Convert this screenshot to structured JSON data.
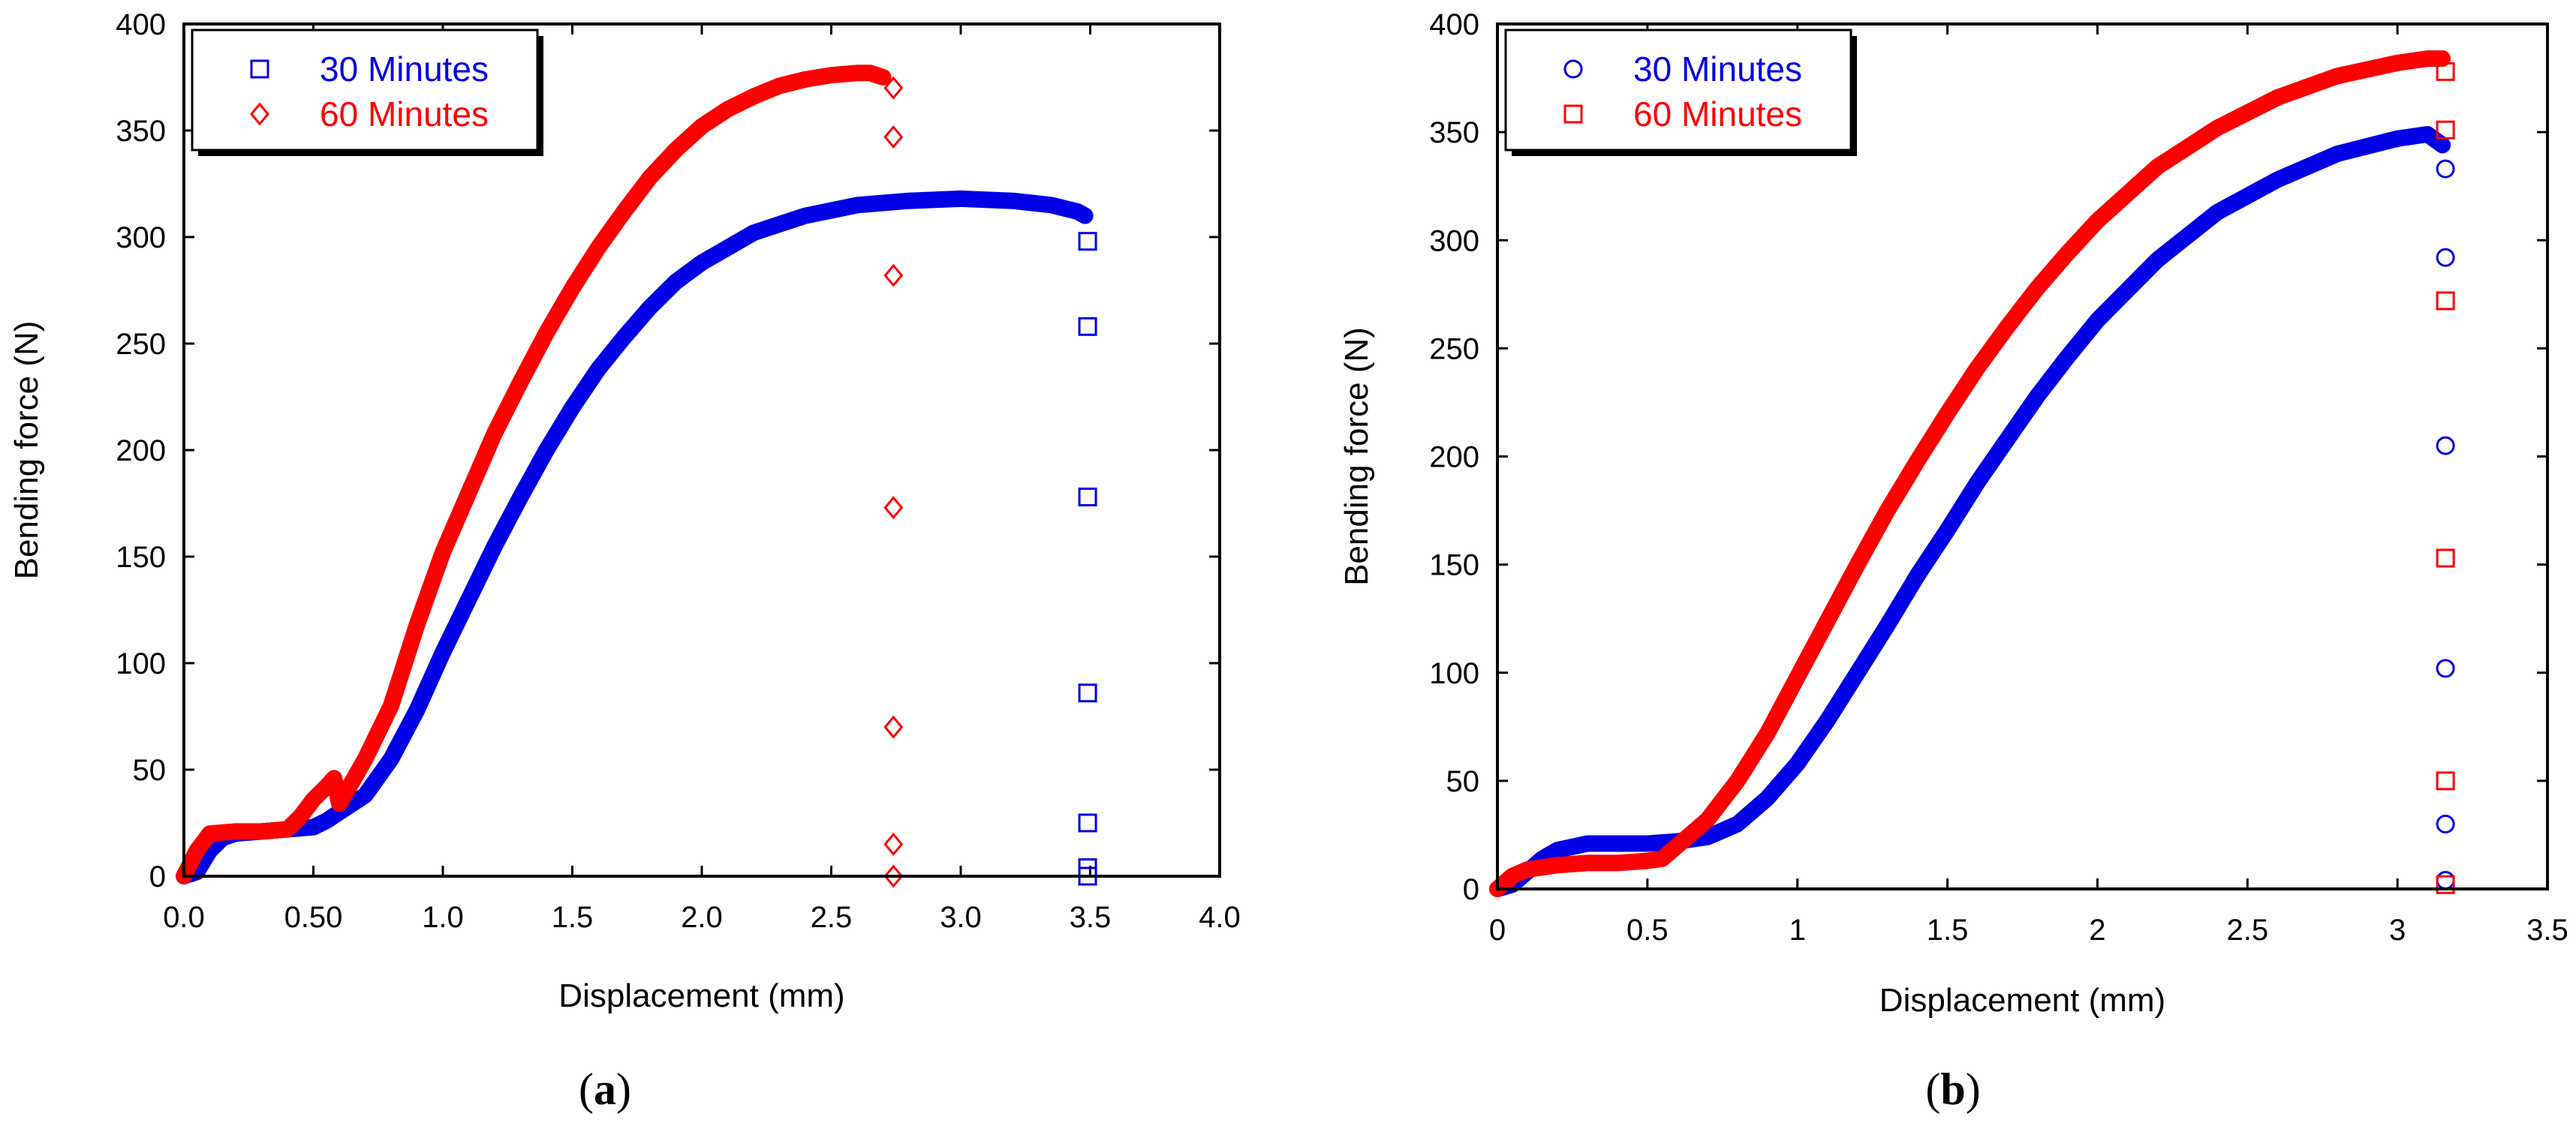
{
  "figure": {
    "panels": [
      {
        "caption_open": "(",
        "caption_letter": "a",
        "caption_close": ")"
      },
      {
        "caption_open": "(",
        "caption_letter": "b",
        "caption_close": ")"
      }
    ]
  },
  "colors": {
    "series_blue": "#0000e6",
    "series_red": "#ff0000",
    "axis": "#000000"
  },
  "chart_data": [
    {
      "type": "scatter",
      "xlabel": "Displacement (mm)",
      "ylabel": "Bending force (N)",
      "xlim": [
        0,
        4
      ],
      "ylim": [
        0,
        400
      ],
      "x_ticks": [
        "0.0",
        "0.50",
        "1.0",
        "1.5",
        "2.0",
        "2.5",
        "3.0",
        "3.5",
        "4.0"
      ],
      "x_tick_values": [
        0,
        0.5,
        1.0,
        1.5,
        2.0,
        2.5,
        3.0,
        3.5,
        4.0
      ],
      "y_ticks": [
        "0",
        "50",
        "100",
        "150",
        "200",
        "250",
        "300",
        "350",
        "400"
      ],
      "y_tick_values": [
        0,
        50,
        100,
        150,
        200,
        250,
        300,
        350,
        400
      ],
      "legend_position": "top-left",
      "series": [
        {
          "name": "30 Minutes",
          "color": "#0000e6",
          "marker": "square",
          "curve": [
            [
              0.0,
              0
            ],
            [
              0.05,
              2
            ],
            [
              0.1,
              12
            ],
            [
              0.15,
              18
            ],
            [
              0.2,
              20
            ],
            [
              0.3,
              21
            ],
            [
              0.4,
              22
            ],
            [
              0.5,
              23
            ],
            [
              0.55,
              26
            ],
            [
              0.6,
              30
            ],
            [
              0.7,
              38
            ],
            [
              0.8,
              55
            ],
            [
              0.9,
              78
            ],
            [
              1.0,
              105
            ],
            [
              1.1,
              130
            ],
            [
              1.2,
              155
            ],
            [
              1.3,
              178
            ],
            [
              1.4,
              200
            ],
            [
              1.5,
              220
            ],
            [
              1.6,
              238
            ],
            [
              1.7,
              253
            ],
            [
              1.8,
              267
            ],
            [
              1.9,
              279
            ],
            [
              2.0,
              288
            ],
            [
              2.2,
              302
            ],
            [
              2.4,
              310
            ],
            [
              2.6,
              315
            ],
            [
              2.8,
              317
            ],
            [
              3.0,
              318
            ],
            [
              3.2,
              317
            ],
            [
              3.35,
              315
            ],
            [
              3.45,
              312
            ],
            [
              3.48,
              310
            ]
          ],
          "drop_points": [
            [
              3.49,
              298
            ],
            [
              3.49,
              258
            ],
            [
              3.49,
              178
            ],
            [
              3.49,
              86
            ],
            [
              3.49,
              25
            ],
            [
              3.49,
              4
            ],
            [
              3.49,
              0
            ]
          ]
        },
        {
          "name": "60 Minutes",
          "color": "#ff0000",
          "marker": "diamond",
          "curve": [
            [
              0.0,
              0
            ],
            [
              0.05,
              12
            ],
            [
              0.1,
              20
            ],
            [
              0.2,
              21
            ],
            [
              0.3,
              21
            ],
            [
              0.4,
              22
            ],
            [
              0.45,
              28
            ],
            [
              0.5,
              36
            ],
            [
              0.55,
              42
            ],
            [
              0.58,
              46
            ],
            [
              0.6,
              34
            ],
            [
              0.62,
              38
            ],
            [
              0.7,
              55
            ],
            [
              0.8,
              80
            ],
            [
              0.9,
              118
            ],
            [
              1.0,
              152
            ],
            [
              1.1,
              180
            ],
            [
              1.2,
              208
            ],
            [
              1.3,
              232
            ],
            [
              1.4,
              255
            ],
            [
              1.5,
              276
            ],
            [
              1.6,
              295
            ],
            [
              1.7,
              312
            ],
            [
              1.8,
              328
            ],
            [
              1.9,
              341
            ],
            [
              2.0,
              352
            ],
            [
              2.1,
              360
            ],
            [
              2.2,
              366
            ],
            [
              2.3,
              371
            ],
            [
              2.4,
              374
            ],
            [
              2.5,
              376
            ],
            [
              2.6,
              377
            ],
            [
              2.65,
              377
            ],
            [
              2.7,
              375
            ]
          ],
          "drop_points": [
            [
              2.74,
              370
            ],
            [
              2.74,
              347
            ],
            [
              2.74,
              282
            ],
            [
              2.74,
              173
            ],
            [
              2.74,
              70
            ],
            [
              2.74,
              15
            ],
            [
              2.74,
              0
            ]
          ]
        }
      ]
    },
    {
      "type": "scatter",
      "xlabel": "Displacement (mm)",
      "ylabel": "Bending force (N)",
      "xlim": [
        0,
        3.5
      ],
      "ylim": [
        0,
        400
      ],
      "x_ticks": [
        "0",
        "0.5",
        "1",
        "1.5",
        "2",
        "2.5",
        "3",
        "3.5"
      ],
      "x_tick_values": [
        0,
        0.5,
        1,
        1.5,
        2,
        2.5,
        3,
        3.5
      ],
      "y_ticks": [
        "0",
        "50",
        "100",
        "150",
        "200",
        "250",
        "300",
        "350",
        "400"
      ],
      "y_tick_values": [
        0,
        50,
        100,
        150,
        200,
        250,
        300,
        350,
        400
      ],
      "legend_position": "top-left",
      "series": [
        {
          "name": "30 Minutes",
          "color": "#0000e6",
          "marker": "circle",
          "curve": [
            [
              0.0,
              0
            ],
            [
              0.05,
              2
            ],
            [
              0.1,
              8
            ],
            [
              0.15,
              14
            ],
            [
              0.2,
              18
            ],
            [
              0.3,
              21
            ],
            [
              0.4,
              21
            ],
            [
              0.5,
              21
            ],
            [
              0.6,
              22
            ],
            [
              0.7,
              24
            ],
            [
              0.8,
              30
            ],
            [
              0.9,
              42
            ],
            [
              1.0,
              58
            ],
            [
              1.1,
              78
            ],
            [
              1.2,
              100
            ],
            [
              1.3,
              122
            ],
            [
              1.4,
              145
            ],
            [
              1.5,
              166
            ],
            [
              1.6,
              188
            ],
            [
              1.7,
              208
            ],
            [
              1.8,
              228
            ],
            [
              1.9,
              246
            ],
            [
              2.0,
              263
            ],
            [
              2.2,
              291
            ],
            [
              2.4,
              313
            ],
            [
              2.6,
              328
            ],
            [
              2.8,
              340
            ],
            [
              3.0,
              347
            ],
            [
              3.1,
              349
            ],
            [
              3.15,
              344
            ]
          ],
          "drop_points": [
            [
              3.16,
              333
            ],
            [
              3.16,
              292
            ],
            [
              3.16,
              205
            ],
            [
              3.16,
              102
            ],
            [
              3.16,
              30
            ],
            [
              3.16,
              4
            ]
          ]
        },
        {
          "name": "60 Minutes",
          "color": "#ff0000",
          "marker": "square",
          "curve": [
            [
              0.0,
              0
            ],
            [
              0.05,
              6
            ],
            [
              0.1,
              9
            ],
            [
              0.2,
              11
            ],
            [
              0.3,
              12
            ],
            [
              0.4,
              12
            ],
            [
              0.5,
              13
            ],
            [
              0.55,
              14
            ],
            [
              0.6,
              20
            ],
            [
              0.7,
              32
            ],
            [
              0.8,
              50
            ],
            [
              0.9,
              72
            ],
            [
              1.0,
              98
            ],
            [
              1.1,
              124
            ],
            [
              1.2,
              150
            ],
            [
              1.3,
              175
            ],
            [
              1.4,
              198
            ],
            [
              1.5,
              220
            ],
            [
              1.6,
              241
            ],
            [
              1.7,
              260
            ],
            [
              1.8,
              278
            ],
            [
              1.9,
              294
            ],
            [
              2.0,
              309
            ],
            [
              2.2,
              334
            ],
            [
              2.4,
              352
            ],
            [
              2.6,
              366
            ],
            [
              2.8,
              376
            ],
            [
              3.0,
              382
            ],
            [
              3.1,
              384
            ],
            [
              3.15,
              384
            ]
          ],
          "drop_points": [
            [
              3.16,
              378
            ],
            [
              3.16,
              351
            ],
            [
              3.16,
              272
            ],
            [
              3.16,
              153
            ],
            [
              3.16,
              50
            ],
            [
              3.16,
              2
            ]
          ]
        }
      ]
    }
  ]
}
